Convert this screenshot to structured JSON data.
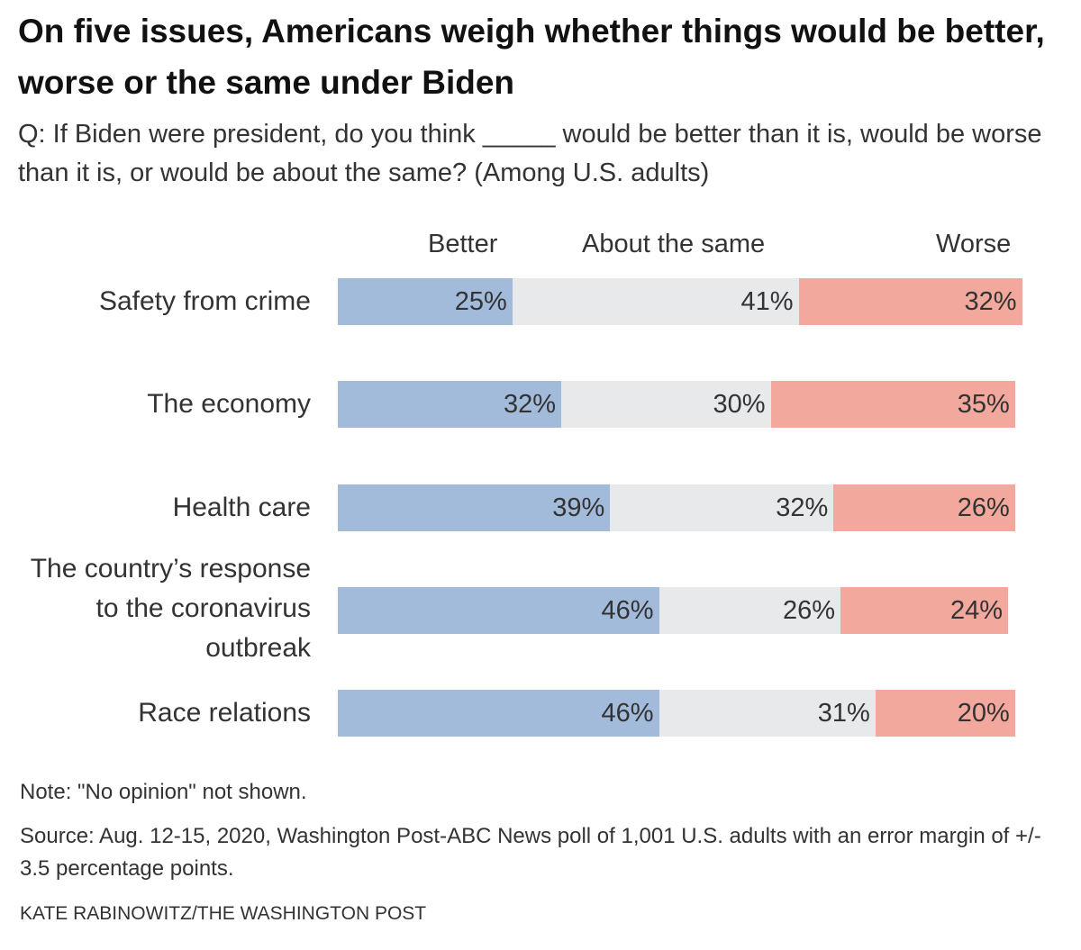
{
  "title": "On five issues, Americans weigh whether things would be better, worse or the same under Biden",
  "subtitle": "Q: If Biden were president, do you think _____ would be better than it is, would be worse than it is, or would be about the same? (Among U.S. adults)",
  "note": "Note: \"No opinion\" not shown.",
  "source": "Source: Aug. 12-15, 2020, Washington Post-ABC News poll of 1,001 U.S. adults with an error margin of +/- 3.5 percentage points.",
  "credit": "KATE RABINOWITZ/THE WASHINGTON POST",
  "chart_data": {
    "type": "bar",
    "stacked": true,
    "orientation": "horizontal",
    "categories": [
      "Safety from crime",
      "The economy",
      "Health care",
      "The country’s response to the coronavirus outbreak",
      "Race relations"
    ],
    "series": [
      {
        "name": "Better",
        "color": "#a3bbdb",
        "values": [
          25,
          32,
          39,
          46,
          46
        ],
        "labels": [
          "25%",
          "32%",
          "39%",
          "46%",
          "46%"
        ]
      },
      {
        "name": "About the same",
        "color": "#e8e9eb",
        "values": [
          41,
          30,
          32,
          26,
          31
        ],
        "labels": [
          "41%",
          "30%",
          "32%",
          "26%",
          "31%"
        ]
      },
      {
        "name": "Worse",
        "color": "#f2a89c",
        "values": [
          32,
          35,
          26,
          24,
          20
        ],
        "labels": [
          "32%",
          "35%",
          "26%",
          "24%",
          "20%"
        ]
      }
    ],
    "unit": "%"
  }
}
